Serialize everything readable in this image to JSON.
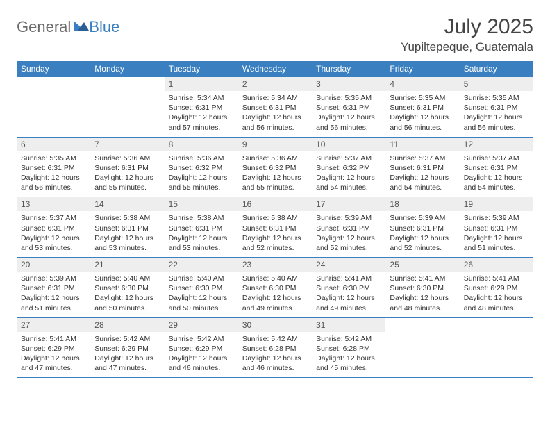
{
  "logo": {
    "general": "General",
    "blue": "Blue"
  },
  "title": "July 2025",
  "location": "Yupiltepeque, Guatemala",
  "colors": {
    "header_bg": "#3a7fbf",
    "header_text": "#ffffff",
    "daynum_bg": "#eeeeee",
    "divider": "#3a7fbf",
    "body_text": "#333333",
    "logo_gray": "#6b6b6b",
    "logo_blue": "#3a7fbf"
  },
  "weekdays": [
    "Sunday",
    "Monday",
    "Tuesday",
    "Wednesday",
    "Thursday",
    "Friday",
    "Saturday"
  ],
  "weeks": [
    [
      {
        "n": "",
        "sr": "",
        "ss": "",
        "dl": ""
      },
      {
        "n": "",
        "sr": "",
        "ss": "",
        "dl": ""
      },
      {
        "n": "1",
        "sr": "Sunrise: 5:34 AM",
        "ss": "Sunset: 6:31 PM",
        "dl": "Daylight: 12 hours and 57 minutes."
      },
      {
        "n": "2",
        "sr": "Sunrise: 5:34 AM",
        "ss": "Sunset: 6:31 PM",
        "dl": "Daylight: 12 hours and 56 minutes."
      },
      {
        "n": "3",
        "sr": "Sunrise: 5:35 AM",
        "ss": "Sunset: 6:31 PM",
        "dl": "Daylight: 12 hours and 56 minutes."
      },
      {
        "n": "4",
        "sr": "Sunrise: 5:35 AM",
        "ss": "Sunset: 6:31 PM",
        "dl": "Daylight: 12 hours and 56 minutes."
      },
      {
        "n": "5",
        "sr": "Sunrise: 5:35 AM",
        "ss": "Sunset: 6:31 PM",
        "dl": "Daylight: 12 hours and 56 minutes."
      }
    ],
    [
      {
        "n": "6",
        "sr": "Sunrise: 5:35 AM",
        "ss": "Sunset: 6:31 PM",
        "dl": "Daylight: 12 hours and 56 minutes."
      },
      {
        "n": "7",
        "sr": "Sunrise: 5:36 AM",
        "ss": "Sunset: 6:31 PM",
        "dl": "Daylight: 12 hours and 55 minutes."
      },
      {
        "n": "8",
        "sr": "Sunrise: 5:36 AM",
        "ss": "Sunset: 6:32 PM",
        "dl": "Daylight: 12 hours and 55 minutes."
      },
      {
        "n": "9",
        "sr": "Sunrise: 5:36 AM",
        "ss": "Sunset: 6:32 PM",
        "dl": "Daylight: 12 hours and 55 minutes."
      },
      {
        "n": "10",
        "sr": "Sunrise: 5:37 AM",
        "ss": "Sunset: 6:32 PM",
        "dl": "Daylight: 12 hours and 54 minutes."
      },
      {
        "n": "11",
        "sr": "Sunrise: 5:37 AM",
        "ss": "Sunset: 6:31 PM",
        "dl": "Daylight: 12 hours and 54 minutes."
      },
      {
        "n": "12",
        "sr": "Sunrise: 5:37 AM",
        "ss": "Sunset: 6:31 PM",
        "dl": "Daylight: 12 hours and 54 minutes."
      }
    ],
    [
      {
        "n": "13",
        "sr": "Sunrise: 5:37 AM",
        "ss": "Sunset: 6:31 PM",
        "dl": "Daylight: 12 hours and 53 minutes."
      },
      {
        "n": "14",
        "sr": "Sunrise: 5:38 AM",
        "ss": "Sunset: 6:31 PM",
        "dl": "Daylight: 12 hours and 53 minutes."
      },
      {
        "n": "15",
        "sr": "Sunrise: 5:38 AM",
        "ss": "Sunset: 6:31 PM",
        "dl": "Daylight: 12 hours and 53 minutes."
      },
      {
        "n": "16",
        "sr": "Sunrise: 5:38 AM",
        "ss": "Sunset: 6:31 PM",
        "dl": "Daylight: 12 hours and 52 minutes."
      },
      {
        "n": "17",
        "sr": "Sunrise: 5:39 AM",
        "ss": "Sunset: 6:31 PM",
        "dl": "Daylight: 12 hours and 52 minutes."
      },
      {
        "n": "18",
        "sr": "Sunrise: 5:39 AM",
        "ss": "Sunset: 6:31 PM",
        "dl": "Daylight: 12 hours and 52 minutes."
      },
      {
        "n": "19",
        "sr": "Sunrise: 5:39 AM",
        "ss": "Sunset: 6:31 PM",
        "dl": "Daylight: 12 hours and 51 minutes."
      }
    ],
    [
      {
        "n": "20",
        "sr": "Sunrise: 5:39 AM",
        "ss": "Sunset: 6:31 PM",
        "dl": "Daylight: 12 hours and 51 minutes."
      },
      {
        "n": "21",
        "sr": "Sunrise: 5:40 AM",
        "ss": "Sunset: 6:30 PM",
        "dl": "Daylight: 12 hours and 50 minutes."
      },
      {
        "n": "22",
        "sr": "Sunrise: 5:40 AM",
        "ss": "Sunset: 6:30 PM",
        "dl": "Daylight: 12 hours and 50 minutes."
      },
      {
        "n": "23",
        "sr": "Sunrise: 5:40 AM",
        "ss": "Sunset: 6:30 PM",
        "dl": "Daylight: 12 hours and 49 minutes."
      },
      {
        "n": "24",
        "sr": "Sunrise: 5:41 AM",
        "ss": "Sunset: 6:30 PM",
        "dl": "Daylight: 12 hours and 49 minutes."
      },
      {
        "n": "25",
        "sr": "Sunrise: 5:41 AM",
        "ss": "Sunset: 6:30 PM",
        "dl": "Daylight: 12 hours and 48 minutes."
      },
      {
        "n": "26",
        "sr": "Sunrise: 5:41 AM",
        "ss": "Sunset: 6:29 PM",
        "dl": "Daylight: 12 hours and 48 minutes."
      }
    ],
    [
      {
        "n": "27",
        "sr": "Sunrise: 5:41 AM",
        "ss": "Sunset: 6:29 PM",
        "dl": "Daylight: 12 hours and 47 minutes."
      },
      {
        "n": "28",
        "sr": "Sunrise: 5:42 AM",
        "ss": "Sunset: 6:29 PM",
        "dl": "Daylight: 12 hours and 47 minutes."
      },
      {
        "n": "29",
        "sr": "Sunrise: 5:42 AM",
        "ss": "Sunset: 6:29 PM",
        "dl": "Daylight: 12 hours and 46 minutes."
      },
      {
        "n": "30",
        "sr": "Sunrise: 5:42 AM",
        "ss": "Sunset: 6:28 PM",
        "dl": "Daylight: 12 hours and 46 minutes."
      },
      {
        "n": "31",
        "sr": "Sunrise: 5:42 AM",
        "ss": "Sunset: 6:28 PM",
        "dl": "Daylight: 12 hours and 45 minutes."
      },
      {
        "n": "",
        "sr": "",
        "ss": "",
        "dl": ""
      },
      {
        "n": "",
        "sr": "",
        "ss": "",
        "dl": ""
      }
    ]
  ]
}
